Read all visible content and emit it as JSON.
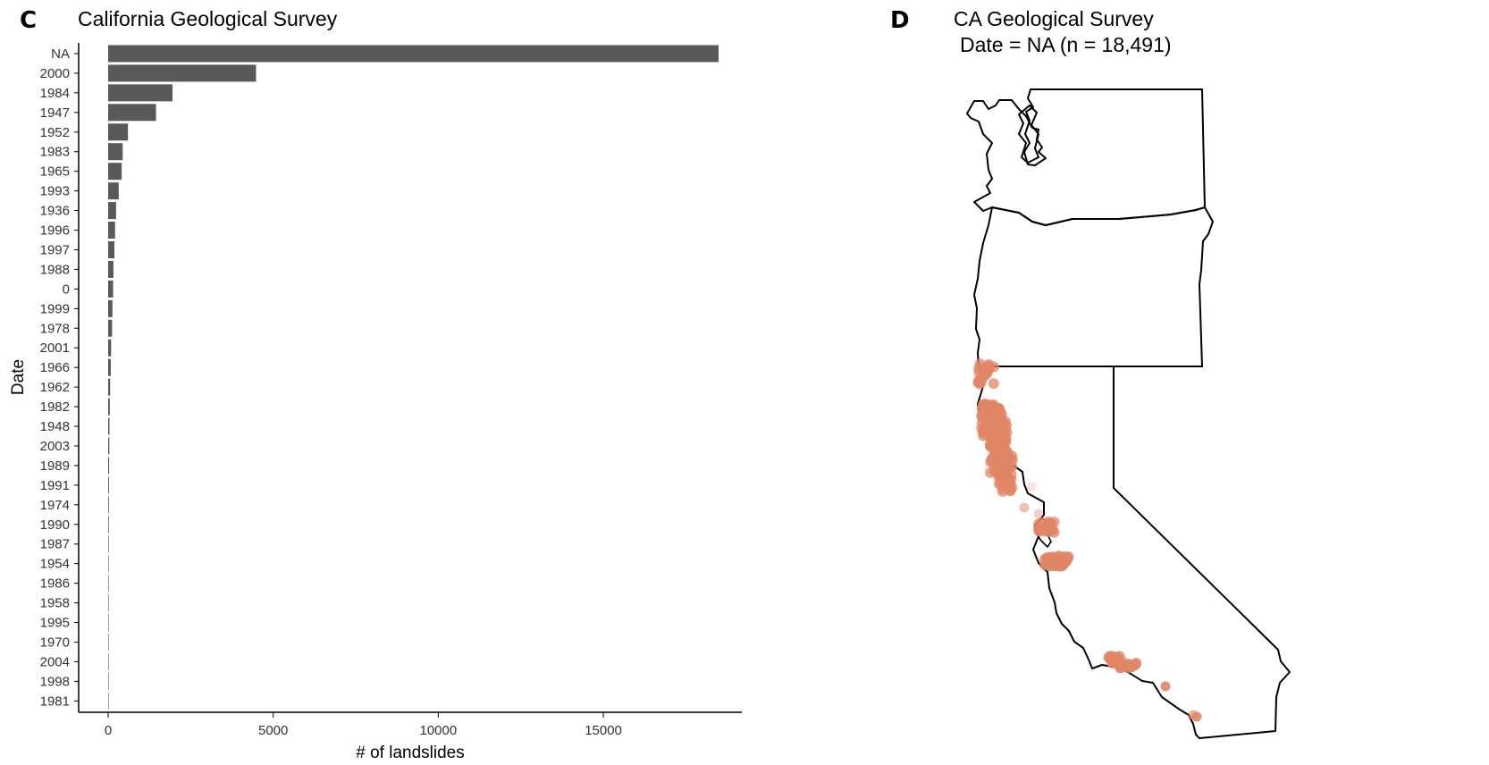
{
  "panel_c": {
    "letter": "C",
    "chart_data": {
      "type": "bar",
      "orientation": "horizontal",
      "title": "California Geological Survey",
      "xlabel": "# of landslides",
      "ylabel": "Date",
      "xlim": [
        0,
        19500
      ],
      "xticks": [
        0,
        5000,
        10000,
        15000
      ],
      "grid": false,
      "bar_color": "#595959",
      "categories": [
        "NA",
        "2000",
        "1984",
        "1947",
        "1952",
        "1983",
        "1965",
        "1993",
        "1936",
        "1996",
        "1997",
        "1988",
        "0",
        "1999",
        "1978",
        "2001",
        "1966",
        "1962",
        "1982",
        "1948",
        "2003",
        "1989",
        "1991",
        "1974",
        "1990",
        "1987",
        "1954",
        "1986",
        "1958",
        "1995",
        "1970",
        "2004",
        "1998",
        "1981"
      ],
      "values": [
        18491,
        4480,
        1950,
        1450,
        600,
        440,
        410,
        320,
        240,
        210,
        190,
        160,
        150,
        130,
        120,
        90,
        80,
        60,
        50,
        40,
        35,
        30,
        25,
        22,
        20,
        18,
        15,
        12,
        10,
        8,
        6,
        5,
        4,
        3
      ]
    }
  },
  "panel_d": {
    "letter": "D",
    "title_line1": "CA Geological Survey",
    "title_line2": "Date = NA (n = 18,491)",
    "point_color": "#e08566",
    "outline_color": "#000000"
  }
}
